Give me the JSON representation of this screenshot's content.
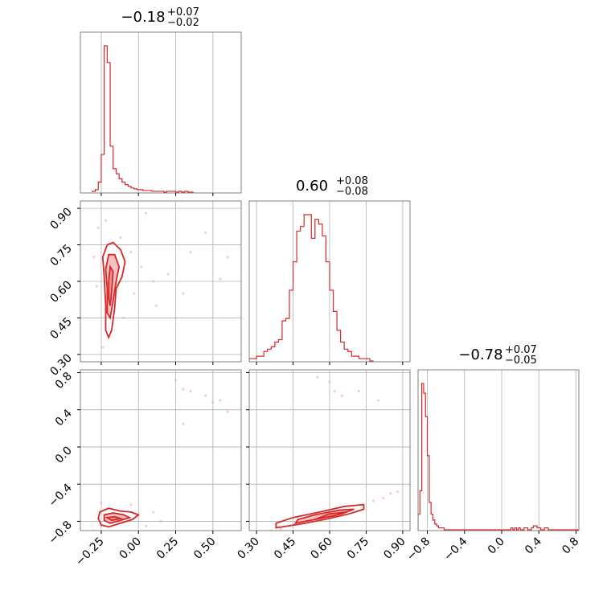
{
  "chart_data": {
    "type": "corner",
    "color": "#d62728",
    "grid": true,
    "params": [
      {
        "index": 0,
        "title": {
          "median": "-0.18",
          "plus": "+0.07",
          "minus": "-0.02"
        },
        "range": [
          -0.39,
          0.69
        ],
        "ticks": [
          -0.25,
          0.0,
          0.25,
          0.5
        ],
        "tick_labels": [
          "-0.25",
          "0.00",
          "0.25",
          "0.50"
        ],
        "hist": {
          "bin_start": -0.31,
          "bin_width": 0.02,
          "counts": [
            1,
            3,
            12,
            45,
            175,
            155,
            55,
            28,
            22,
            16,
            12,
            9,
            7,
            5,
            4,
            3,
            3,
            2,
            2,
            2,
            1,
            1,
            1,
            1,
            0,
            1,
            1,
            1,
            0,
            1,
            0,
            1,
            0,
            0
          ]
        }
      },
      {
        "index": 1,
        "title": {
          "median": "0.60",
          "plus": "+0.08",
          "minus": "-0.08"
        },
        "range": [
          0.27,
          0.93
        ],
        "ticks": [
          0.3,
          0.45,
          0.6,
          0.75,
          0.9
        ],
        "tick_labels": [
          "0.30",
          "0.45",
          "0.60",
          "0.75",
          "0.90"
        ],
        "hist": {
          "bin_start": 0.27,
          "bin_width": 0.015,
          "counts": [
            1,
            1,
            2,
            2,
            4,
            5,
            6,
            8,
            9,
            17,
            18,
            30,
            42,
            55,
            57,
            62,
            62,
            52,
            60,
            58,
            53,
            42,
            30,
            21,
            13,
            8,
            5,
            4,
            2,
            2,
            1,
            1,
            1,
            0
          ]
        }
      },
      {
        "index": 2,
        "title": {
          "median": "-0.78",
          "plus": "+0.07",
          "minus": "-0.05"
        },
        "range": [
          -0.9,
          0.83
        ],
        "ticks": [
          -0.8,
          -0.4,
          0.0,
          0.4,
          0.8
        ],
        "tick_labels": [
          "-0.8",
          "-0.4",
          "0.0",
          "0.4",
          "0.8"
        ],
        "hist": {
          "bin_start": -0.9,
          "bin_width": 0.02,
          "counts": [
            8,
            20,
            75,
            70,
            58,
            38,
            14,
            8,
            5,
            3,
            2,
            1,
            1,
            1,
            0,
            0,
            0,
            0,
            0,
            0,
            0,
            0,
            0,
            0,
            0,
            0,
            0,
            0,
            0,
            0,
            0,
            0,
            0,
            0,
            0,
            0,
            0,
            0,
            0,
            0,
            0,
            0,
            0,
            0,
            0,
            0,
            0,
            0,
            0,
            0,
            1,
            0,
            1,
            0,
            1,
            0,
            0,
            1,
            1,
            0,
            0,
            1,
            2,
            2,
            1,
            1,
            0,
            0,
            1,
            1,
            0,
            0,
            0,
            0,
            0,
            0,
            0,
            0,
            0,
            0,
            0,
            0,
            0,
            0,
            0,
            0,
            0
          ]
        }
      }
    ],
    "pairs": [
      {
        "x": 0,
        "y": 1,
        "contours": [
          [
            [
              -0.21,
              0.75
            ],
            [
              -0.17,
              0.76
            ],
            [
              -0.12,
              0.73
            ],
            [
              -0.09,
              0.68
            ],
            [
              -0.11,
              0.62
            ],
            [
              -0.15,
              0.57
            ],
            [
              -0.16,
              0.49
            ],
            [
              -0.18,
              0.4
            ],
            [
              -0.2,
              0.37
            ],
            [
              -0.22,
              0.4
            ],
            [
              -0.22,
              0.5
            ],
            [
              -0.23,
              0.62
            ],
            [
              -0.24,
              0.7
            ]
          ],
          [
            [
              -0.2,
              0.71
            ],
            [
              -0.16,
              0.71
            ],
            [
              -0.13,
              0.66
            ],
            [
              -0.15,
              0.6
            ],
            [
              -0.17,
              0.52
            ],
            [
              -0.19,
              0.45
            ],
            [
              -0.21,
              0.47
            ],
            [
              -0.21,
              0.57
            ],
            [
              -0.22,
              0.65
            ]
          ],
          [
            [
              -0.19,
              0.66
            ],
            [
              -0.17,
              0.64
            ],
            [
              -0.18,
              0.56
            ],
            [
              -0.19,
              0.5
            ],
            [
              -0.2,
              0.53
            ],
            [
              -0.2,
              0.6
            ]
          ]
        ],
        "scatter": [
          [
            -0.27,
            0.82
          ],
          [
            -0.22,
            0.85
          ],
          [
            -0.12,
            0.78
          ],
          [
            -0.05,
            0.72
          ],
          [
            0.02,
            0.66
          ],
          [
            0.1,
            0.6
          ],
          [
            0.2,
            0.63
          ],
          [
            0.3,
            0.55
          ],
          [
            0.45,
            0.8
          ],
          [
            0.55,
            0.61
          ],
          [
            0.05,
            0.88
          ],
          [
            -0.1,
            0.45
          ],
          [
            0.12,
            0.5
          ],
          [
            0.35,
            0.72
          ],
          [
            -0.28,
            0.58
          ],
          [
            -0.24,
            0.33
          ],
          [
            -0.3,
            0.7
          ],
          [
            0.6,
            0.7
          ],
          [
            0.25,
            0.45
          ],
          [
            -0.03,
            0.55
          ]
        ]
      },
      {
        "x": 0,
        "y": 2,
        "contours": [
          [
            [
              -0.26,
              -0.7
            ],
            [
              -0.2,
              -0.66
            ],
            [
              -0.12,
              -0.69
            ],
            [
              -0.05,
              -0.7
            ],
            [
              0.0,
              -0.73
            ],
            [
              -0.04,
              -0.78
            ],
            [
              -0.12,
              -0.82
            ],
            [
              -0.2,
              -0.86
            ],
            [
              -0.25,
              -0.84
            ],
            [
              -0.27,
              -0.77
            ]
          ],
          [
            [
              -0.23,
              -0.73
            ],
            [
              -0.17,
              -0.71
            ],
            [
              -0.1,
              -0.73
            ],
            [
              -0.06,
              -0.76
            ],
            [
              -0.12,
              -0.79
            ],
            [
              -0.19,
              -0.82
            ],
            [
              -0.23,
              -0.79
            ]
          ],
          [
            [
              -0.21,
              -0.76
            ],
            [
              -0.16,
              -0.75
            ],
            [
              -0.12,
              -0.77
            ],
            [
              -0.18,
              -0.79
            ]
          ]
        ],
        "scatter": [
          [
            0.25,
            0.72
          ],
          [
            0.3,
            0.62
          ],
          [
            0.35,
            0.6
          ],
          [
            0.45,
            0.55
          ],
          [
            0.55,
            0.5
          ],
          [
            0.5,
            0.48
          ],
          [
            0.6,
            0.38
          ],
          [
            0.3,
            0.25
          ],
          [
            -0.25,
            -0.6
          ],
          [
            -0.05,
            -0.62
          ],
          [
            0.1,
            -0.7
          ],
          [
            0.15,
            -0.8
          ],
          [
            0.05,
            -0.85
          ],
          [
            -0.3,
            -0.9
          ]
        ]
      },
      {
        "x": 1,
        "y": 2,
        "contours": [
          [
            [
              0.38,
              -0.87
            ],
            [
              0.48,
              -0.83
            ],
            [
              0.58,
              -0.78
            ],
            [
              0.68,
              -0.72
            ],
            [
              0.74,
              -0.67
            ],
            [
              0.74,
              -0.62
            ],
            [
              0.66,
              -0.64
            ],
            [
              0.56,
              -0.7
            ],
            [
              0.45,
              -0.76
            ],
            [
              0.38,
              -0.82
            ]
          ],
          [
            [
              0.46,
              -0.82
            ],
            [
              0.56,
              -0.77
            ],
            [
              0.65,
              -0.72
            ],
            [
              0.7,
              -0.67
            ],
            [
              0.64,
              -0.68
            ],
            [
              0.54,
              -0.73
            ],
            [
              0.47,
              -0.78
            ]
          ],
          [
            [
              0.54,
              -0.78
            ],
            [
              0.62,
              -0.74
            ],
            [
              0.67,
              -0.7
            ],
            [
              0.6,
              -0.72
            ]
          ]
        ],
        "scatter": [
          [
            0.32,
            -0.92
          ],
          [
            0.36,
            -0.9
          ],
          [
            0.4,
            -0.88
          ],
          [
            0.78,
            -0.58
          ],
          [
            0.82,
            -0.55
          ],
          [
            0.85,
            -0.5
          ],
          [
            0.88,
            -0.48
          ],
          [
            0.6,
            0.7
          ],
          [
            0.62,
            0.6
          ],
          [
            0.55,
            0.75
          ],
          [
            0.72,
            0.6
          ],
          [
            0.8,
            0.5
          ],
          [
            0.65,
            0.55
          ]
        ]
      }
    ]
  }
}
